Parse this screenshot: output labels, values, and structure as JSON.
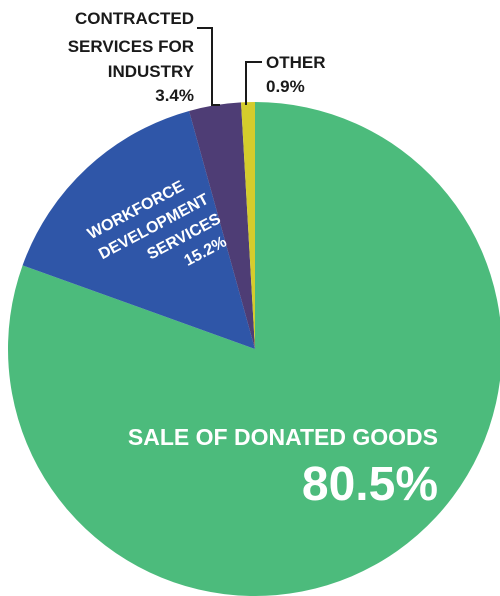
{
  "chart_data": {
    "type": "pie",
    "title": "",
    "start_angle_deg": 0,
    "direction": "clockwise",
    "slices": [
      {
        "name": "SALE OF DONATED GOODS",
        "value": 80.5,
        "value_label": "80.5%",
        "color": "#4cbb7c"
      },
      {
        "name": "WORKFORCE DEVELOPMENT SERVICES",
        "value": 15.2,
        "value_label": "15.2%",
        "color": "#2f56a8"
      },
      {
        "name": "CONTRACTED SERVICES FOR INDUSTRY",
        "value": 3.4,
        "value_label": "3.4%",
        "color": "#4e3d75"
      },
      {
        "name": "OTHER",
        "value": 0.9,
        "value_label": "0.9%",
        "color": "#d4cc2c"
      }
    ]
  },
  "labels": {
    "sale": {
      "line1": "SALE OF DONATED GOODS",
      "pct": "80.5%"
    },
    "workforce": {
      "line1": "WORKFORCE",
      "line2": "DEVELOPMENT",
      "line3": "SERVICES",
      "pct": "15.2%"
    },
    "contracted": {
      "line1": "CONTRACTED",
      "line2": "SERVICES FOR",
      "line3": "INDUSTRY",
      "pct": "3.4%"
    },
    "other": {
      "line1": "OTHER",
      "pct": "0.9%"
    }
  }
}
